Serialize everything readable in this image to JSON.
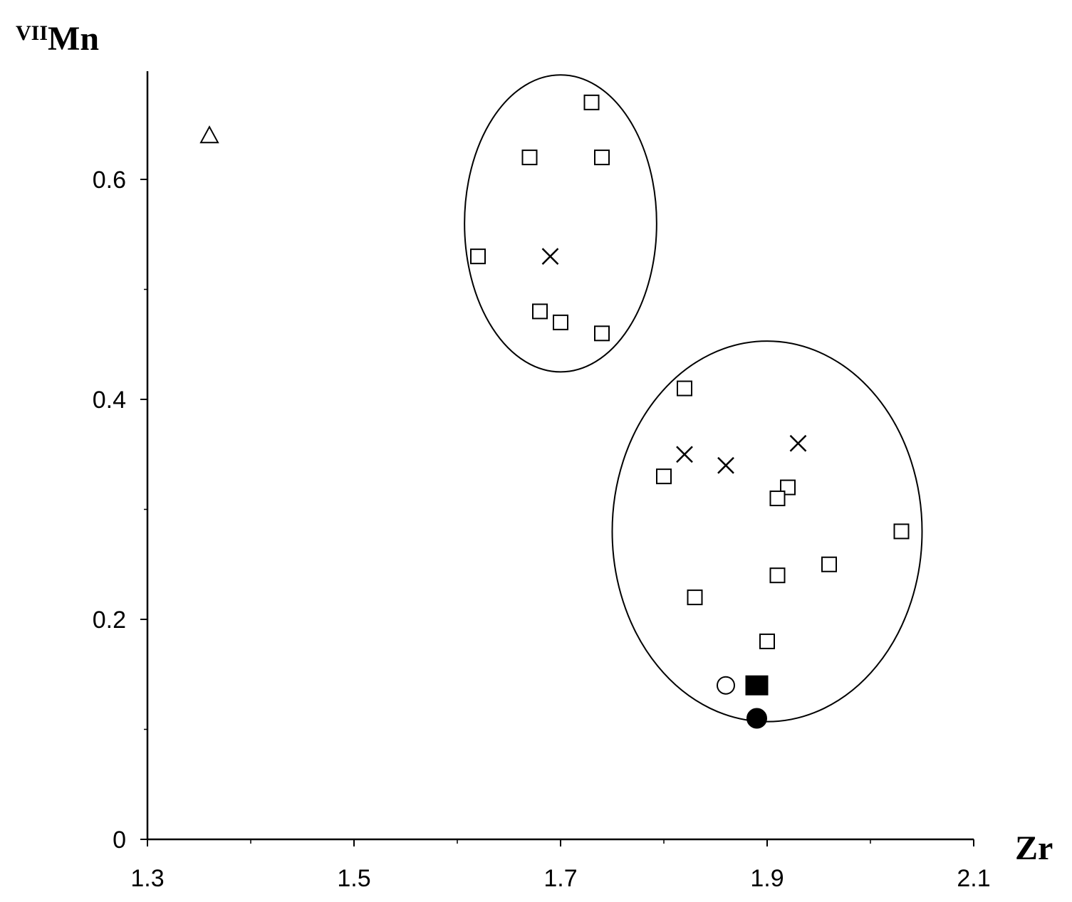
{
  "chart_data": {
    "type": "scatter",
    "title": "",
    "xlabel": "Zr",
    "ylabel_prefix": "VII",
    "ylabel": "Mn",
    "xlim": [
      1.3,
      2.1
    ],
    "ylim": [
      0,
      0.7
    ],
    "x_ticks": [
      1.3,
      1.5,
      1.7,
      1.9,
      2.1
    ],
    "x_tick_labels": [
      "1.3",
      "1.5",
      "1.7",
      "1.9",
      "2.1"
    ],
    "y_ticks": [
      0,
      0.2,
      0.4,
      0.6
    ],
    "y_tick_labels": [
      "0",
      "0.2",
      "0.4",
      "0.6"
    ],
    "grid": false,
    "legend": "none",
    "series": [
      {
        "marker": "open-square",
        "points": [
          [
            1.73,
            0.67
          ],
          [
            1.67,
            0.62
          ],
          [
            1.74,
            0.62
          ],
          [
            1.62,
            0.53
          ],
          [
            1.68,
            0.48
          ],
          [
            1.7,
            0.47
          ],
          [
            1.74,
            0.46
          ],
          [
            1.82,
            0.41
          ],
          [
            1.8,
            0.33
          ],
          [
            1.92,
            0.32
          ],
          [
            1.91,
            0.31
          ],
          [
            2.03,
            0.28
          ],
          [
            1.96,
            0.25
          ],
          [
            1.91,
            0.24
          ],
          [
            1.83,
            0.22
          ],
          [
            1.9,
            0.18
          ]
        ]
      },
      {
        "marker": "cross",
        "points": [
          [
            1.69,
            0.53
          ],
          [
            1.82,
            0.35
          ],
          [
            1.86,
            0.34
          ],
          [
            1.93,
            0.36
          ]
        ]
      },
      {
        "marker": "open-triangle",
        "points": [
          [
            1.36,
            0.64
          ]
        ]
      },
      {
        "marker": "open-circle",
        "points": [
          [
            1.86,
            0.14
          ]
        ]
      },
      {
        "marker": "filled-square",
        "points": [
          [
            1.89,
            0.14
          ]
        ]
      },
      {
        "marker": "filled-circle",
        "points": [
          [
            1.89,
            0.11
          ]
        ]
      }
    ],
    "ellipses": [
      {
        "center": [
          1.7,
          0.56
        ],
        "radius_x": 0.093,
        "radius_y": 0.135
      },
      {
        "center": [
          1.9,
          0.28
        ],
        "radius_x": 0.15,
        "radius_y": 0.173
      }
    ]
  }
}
